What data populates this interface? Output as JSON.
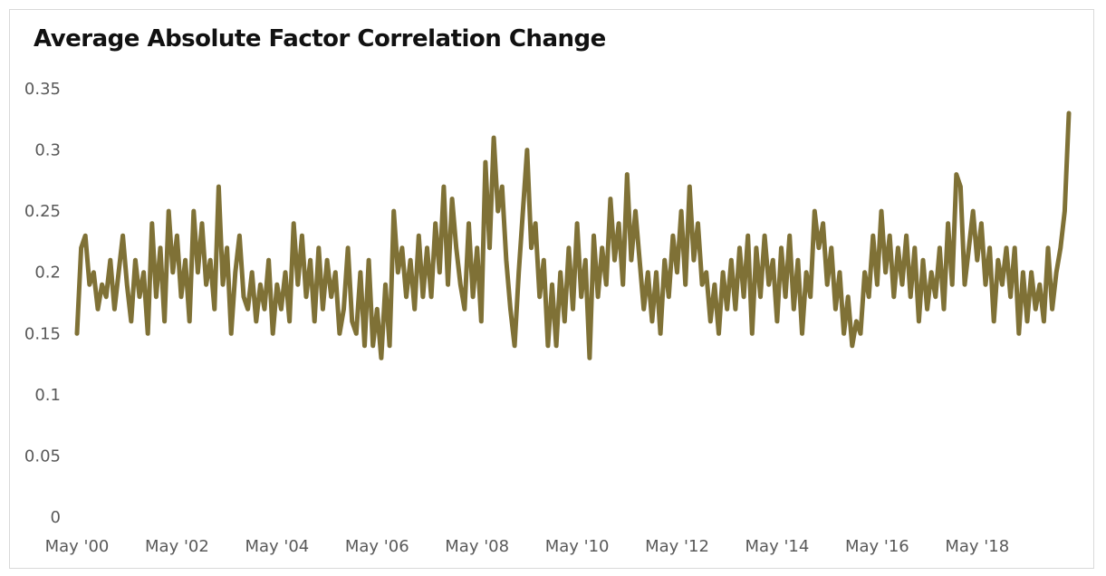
{
  "chart_data": {
    "type": "line",
    "title": "Average Absolute Factor Correlation Change",
    "xlabel": "",
    "ylabel": "",
    "x_range": [
      "2000-05",
      "2020-03"
    ],
    "ylim": [
      0,
      0.35
    ],
    "y_ticks": [
      "0",
      "0.05",
      "0.1",
      "0.15",
      "0.2",
      "0.25",
      "0.3",
      "0.35"
    ],
    "x_ticks": [
      {
        "date": "2000-05",
        "label": "May '00"
      },
      {
        "date": "2002-05",
        "label": "May '02"
      },
      {
        "date": "2004-05",
        "label": "May '04"
      },
      {
        "date": "2006-05",
        "label": "May '06"
      },
      {
        "date": "2008-05",
        "label": "May '08"
      },
      {
        "date": "2010-05",
        "label": "May '10"
      },
      {
        "date": "2012-05",
        "label": "May '12"
      },
      {
        "date": "2014-05",
        "label": "May '14"
      },
      {
        "date": "2016-05",
        "label": "May '16"
      },
      {
        "date": "2018-05",
        "label": "May '18"
      }
    ],
    "grid": false,
    "legend": "none",
    "series": [
      {
        "color": "#7f7136",
        "points": [
          [
            "2000-05",
            0.15
          ],
          [
            "2000-06",
            0.22
          ],
          [
            "2000-07",
            0.23
          ],
          [
            "2000-08",
            0.19
          ],
          [
            "2000-09",
            0.2
          ],
          [
            "2000-10",
            0.17
          ],
          [
            "2000-11",
            0.19
          ],
          [
            "2000-12",
            0.18
          ],
          [
            "2001-01",
            0.21
          ],
          [
            "2001-02",
            0.17
          ],
          [
            "2001-03",
            0.2
          ],
          [
            "2001-04",
            0.23
          ],
          [
            "2001-05",
            0.19
          ],
          [
            "2001-06",
            0.16
          ],
          [
            "2001-07",
            0.21
          ],
          [
            "2001-08",
            0.18
          ],
          [
            "2001-09",
            0.2
          ],
          [
            "2001-10",
            0.15
          ],
          [
            "2001-11",
            0.24
          ],
          [
            "2001-12",
            0.18
          ],
          [
            "2002-01",
            0.22
          ],
          [
            "2002-02",
            0.16
          ],
          [
            "2002-03",
            0.25
          ],
          [
            "2002-04",
            0.2
          ],
          [
            "2002-05",
            0.23
          ],
          [
            "2002-06",
            0.18
          ],
          [
            "2002-07",
            0.21
          ],
          [
            "2002-08",
            0.16
          ],
          [
            "2002-09",
            0.25
          ],
          [
            "2002-10",
            0.2
          ],
          [
            "2002-11",
            0.24
          ],
          [
            "2002-12",
            0.19
          ],
          [
            "2003-01",
            0.21
          ],
          [
            "2003-02",
            0.17
          ],
          [
            "2003-03",
            0.27
          ],
          [
            "2003-04",
            0.19
          ],
          [
            "2003-05",
            0.22
          ],
          [
            "2003-06",
            0.15
          ],
          [
            "2003-07",
            0.2
          ],
          [
            "2003-08",
            0.23
          ],
          [
            "2003-09",
            0.18
          ],
          [
            "2003-10",
            0.17
          ],
          [
            "2003-11",
            0.2
          ],
          [
            "2003-12",
            0.16
          ],
          [
            "2004-01",
            0.19
          ],
          [
            "2004-02",
            0.17
          ],
          [
            "2004-03",
            0.21
          ],
          [
            "2004-04",
            0.15
          ],
          [
            "2004-05",
            0.19
          ],
          [
            "2004-06",
            0.17
          ],
          [
            "2004-07",
            0.2
          ],
          [
            "2004-08",
            0.16
          ],
          [
            "2004-09",
            0.24
          ],
          [
            "2004-10",
            0.19
          ],
          [
            "2004-11",
            0.23
          ],
          [
            "2004-12",
            0.18
          ],
          [
            "2005-01",
            0.21
          ],
          [
            "2005-02",
            0.16
          ],
          [
            "2005-03",
            0.22
          ],
          [
            "2005-04",
            0.17
          ],
          [
            "2005-05",
            0.21
          ],
          [
            "2005-06",
            0.18
          ],
          [
            "2005-07",
            0.2
          ],
          [
            "2005-08",
            0.15
          ],
          [
            "2005-09",
            0.17
          ],
          [
            "2005-10",
            0.22
          ],
          [
            "2005-11",
            0.16
          ],
          [
            "2005-12",
            0.15
          ],
          [
            "2006-01",
            0.2
          ],
          [
            "2006-02",
            0.14
          ],
          [
            "2006-03",
            0.21
          ],
          [
            "2006-04",
            0.14
          ],
          [
            "2006-05",
            0.17
          ],
          [
            "2006-06",
            0.13
          ],
          [
            "2006-07",
            0.19
          ],
          [
            "2006-08",
            0.14
          ],
          [
            "2006-09",
            0.25
          ],
          [
            "2006-10",
            0.2
          ],
          [
            "2006-11",
            0.22
          ],
          [
            "2006-12",
            0.18
          ],
          [
            "2007-01",
            0.21
          ],
          [
            "2007-02",
            0.17
          ],
          [
            "2007-03",
            0.23
          ],
          [
            "2007-04",
            0.18
          ],
          [
            "2007-05",
            0.22
          ],
          [
            "2007-06",
            0.18
          ],
          [
            "2007-07",
            0.24
          ],
          [
            "2007-08",
            0.2
          ],
          [
            "2007-09",
            0.27
          ],
          [
            "2007-10",
            0.19
          ],
          [
            "2007-11",
            0.26
          ],
          [
            "2007-12",
            0.22
          ],
          [
            "2008-01",
            0.19
          ],
          [
            "2008-02",
            0.17
          ],
          [
            "2008-03",
            0.24
          ],
          [
            "2008-04",
            0.18
          ],
          [
            "2008-05",
            0.22
          ],
          [
            "2008-06",
            0.16
          ],
          [
            "2008-07",
            0.29
          ],
          [
            "2008-08",
            0.22
          ],
          [
            "2008-09",
            0.31
          ],
          [
            "2008-10",
            0.25
          ],
          [
            "2008-11",
            0.27
          ],
          [
            "2008-12",
            0.21
          ],
          [
            "2009-01",
            0.17
          ],
          [
            "2009-02",
            0.14
          ],
          [
            "2009-03",
            0.2
          ],
          [
            "2009-04",
            0.25
          ],
          [
            "2009-05",
            0.3
          ],
          [
            "2009-06",
            0.22
          ],
          [
            "2009-07",
            0.24
          ],
          [
            "2009-08",
            0.18
          ],
          [
            "2009-09",
            0.21
          ],
          [
            "2009-10",
            0.14
          ],
          [
            "2009-11",
            0.19
          ],
          [
            "2009-12",
            0.14
          ],
          [
            "2010-01",
            0.2
          ],
          [
            "2010-02",
            0.16
          ],
          [
            "2010-03",
            0.22
          ],
          [
            "2010-04",
            0.17
          ],
          [
            "2010-05",
            0.24
          ],
          [
            "2010-06",
            0.18
          ],
          [
            "2010-07",
            0.21
          ],
          [
            "2010-08",
            0.13
          ],
          [
            "2010-09",
            0.23
          ],
          [
            "2010-10",
            0.18
          ],
          [
            "2010-11",
            0.22
          ],
          [
            "2010-12",
            0.19
          ],
          [
            "2011-01",
            0.26
          ],
          [
            "2011-02",
            0.21
          ],
          [
            "2011-03",
            0.24
          ],
          [
            "2011-04",
            0.19
          ],
          [
            "2011-05",
            0.28
          ],
          [
            "2011-06",
            0.21
          ],
          [
            "2011-07",
            0.25
          ],
          [
            "2011-08",
            0.21
          ],
          [
            "2011-09",
            0.17
          ],
          [
            "2011-10",
            0.2
          ],
          [
            "2011-11",
            0.16
          ],
          [
            "2011-12",
            0.2
          ],
          [
            "2012-01",
            0.15
          ],
          [
            "2012-02",
            0.21
          ],
          [
            "2012-03",
            0.18
          ],
          [
            "2012-04",
            0.23
          ],
          [
            "2012-05",
            0.2
          ],
          [
            "2012-06",
            0.25
          ],
          [
            "2012-07",
            0.19
          ],
          [
            "2012-08",
            0.27
          ],
          [
            "2012-09",
            0.21
          ],
          [
            "2012-10",
            0.24
          ],
          [
            "2012-11",
            0.19
          ],
          [
            "2012-12",
            0.2
          ],
          [
            "2013-01",
            0.16
          ],
          [
            "2013-02",
            0.19
          ],
          [
            "2013-03",
            0.15
          ],
          [
            "2013-04",
            0.2
          ],
          [
            "2013-05",
            0.17
          ],
          [
            "2013-06",
            0.21
          ],
          [
            "2013-07",
            0.17
          ],
          [
            "2013-08",
            0.22
          ],
          [
            "2013-09",
            0.18
          ],
          [
            "2013-10",
            0.23
          ],
          [
            "2013-11",
            0.15
          ],
          [
            "2013-12",
            0.22
          ],
          [
            "2014-01",
            0.18
          ],
          [
            "2014-02",
            0.23
          ],
          [
            "2014-03",
            0.19
          ],
          [
            "2014-04",
            0.21
          ],
          [
            "2014-05",
            0.16
          ],
          [
            "2014-06",
            0.22
          ],
          [
            "2014-07",
            0.18
          ],
          [
            "2014-08",
            0.23
          ],
          [
            "2014-09",
            0.17
          ],
          [
            "2014-10",
            0.21
          ],
          [
            "2014-11",
            0.15
          ],
          [
            "2014-12",
            0.2
          ],
          [
            "2015-01",
            0.18
          ],
          [
            "2015-02",
            0.25
          ],
          [
            "2015-03",
            0.22
          ],
          [
            "2015-04",
            0.24
          ],
          [
            "2015-05",
            0.19
          ],
          [
            "2015-06",
            0.22
          ],
          [
            "2015-07",
            0.17
          ],
          [
            "2015-08",
            0.2
          ],
          [
            "2015-09",
            0.15
          ],
          [
            "2015-10",
            0.18
          ],
          [
            "2015-11",
            0.14
          ],
          [
            "2015-12",
            0.16
          ],
          [
            "2016-01",
            0.15
          ],
          [
            "2016-02",
            0.2
          ],
          [
            "2016-03",
            0.18
          ],
          [
            "2016-04",
            0.23
          ],
          [
            "2016-05",
            0.19
          ],
          [
            "2016-06",
            0.25
          ],
          [
            "2016-07",
            0.2
          ],
          [
            "2016-08",
            0.23
          ],
          [
            "2016-09",
            0.18
          ],
          [
            "2016-10",
            0.22
          ],
          [
            "2016-11",
            0.19
          ],
          [
            "2016-12",
            0.23
          ],
          [
            "2017-01",
            0.18
          ],
          [
            "2017-02",
            0.22
          ],
          [
            "2017-03",
            0.16
          ],
          [
            "2017-04",
            0.21
          ],
          [
            "2017-05",
            0.17
          ],
          [
            "2017-06",
            0.2
          ],
          [
            "2017-07",
            0.18
          ],
          [
            "2017-08",
            0.22
          ],
          [
            "2017-09",
            0.17
          ],
          [
            "2017-10",
            0.24
          ],
          [
            "2017-11",
            0.19
          ],
          [
            "2017-12",
            0.28
          ],
          [
            "2018-01",
            0.27
          ],
          [
            "2018-02",
            0.19
          ],
          [
            "2018-03",
            0.22
          ],
          [
            "2018-04",
            0.25
          ],
          [
            "2018-05",
            0.21
          ],
          [
            "2018-06",
            0.24
          ],
          [
            "2018-07",
            0.19
          ],
          [
            "2018-08",
            0.22
          ],
          [
            "2018-09",
            0.16
          ],
          [
            "2018-10",
            0.21
          ],
          [
            "2018-11",
            0.19
          ],
          [
            "2018-12",
            0.22
          ],
          [
            "2019-01",
            0.18
          ],
          [
            "2019-02",
            0.22
          ],
          [
            "2019-03",
            0.15
          ],
          [
            "2019-04",
            0.2
          ],
          [
            "2019-05",
            0.16
          ],
          [
            "2019-06",
            0.2
          ],
          [
            "2019-07",
            0.17
          ],
          [
            "2019-08",
            0.19
          ],
          [
            "2019-09",
            0.16
          ],
          [
            "2019-10",
            0.22
          ],
          [
            "2019-11",
            0.17
          ],
          [
            "2019-12",
            0.2
          ],
          [
            "2020-01",
            0.22
          ],
          [
            "2020-02",
            0.25
          ],
          [
            "2020-03",
            0.33
          ]
        ]
      }
    ]
  }
}
